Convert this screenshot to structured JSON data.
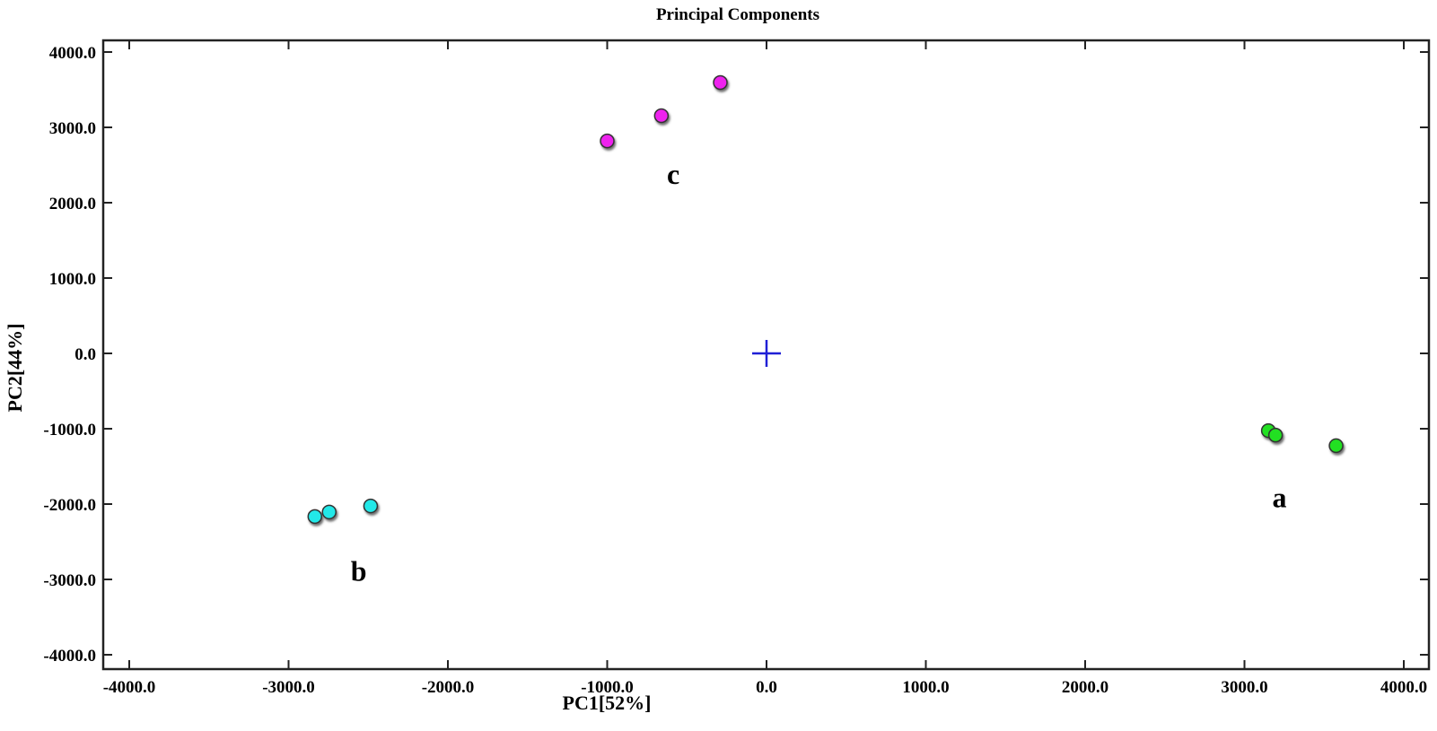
{
  "chart_data": {
    "type": "scatter",
    "title": "Principal Components",
    "xlabel": "PC1[52%]",
    "ylabel": "PC2[44%]",
    "xlim": [
      -4000,
      4000
    ],
    "ylim": [
      -4000,
      4000
    ],
    "xticks": [
      -4000,
      -3000,
      -2000,
      -1000,
      0,
      1000,
      2000,
      3000,
      4000
    ],
    "yticks": [
      -4000,
      -3000,
      -2000,
      -1000,
      0,
      1000,
      2000,
      3000,
      4000
    ],
    "xtick_labels": [
      "-4000.0",
      "-3000.0",
      "-2000.0",
      "-1000.0",
      "0.0",
      "1000.0",
      "2000.0",
      "3000.0",
      "4000.0"
    ],
    "ytick_labels": [
      "-4000.0",
      "-3000.0",
      "-2000.0",
      "-1000.0",
      "0.0",
      "1000.0",
      "2000.0",
      "3000.0",
      "4000.0"
    ],
    "grid": false,
    "legend": null,
    "origin_marker": {
      "x": 0,
      "y": 0,
      "symbol": "+",
      "color": "#1f1fd6"
    },
    "series": [
      {
        "name": "a",
        "color": "#22e022",
        "points": [
          {
            "x": 3150,
            "y": -1025
          },
          {
            "x": 3195,
            "y": -1085
          },
          {
            "x": 3575,
            "y": -1225
          }
        ],
        "label_pos": {
          "x": 3220,
          "y": -1920
        }
      },
      {
        "name": "b",
        "color": "#22e8e8",
        "points": [
          {
            "x": -2835,
            "y": -2165
          },
          {
            "x": -2745,
            "y": -2105
          },
          {
            "x": -2485,
            "y": -2025
          }
        ],
        "label_pos": {
          "x": -2560,
          "y": -2900
        }
      },
      {
        "name": "c",
        "color": "#ee22ee",
        "points": [
          {
            "x": -1000,
            "y": 2820
          },
          {
            "x": -660,
            "y": 3155
          },
          {
            "x": -290,
            "y": 3595
          }
        ],
        "label_pos": {
          "x": -585,
          "y": 2370
        }
      }
    ]
  }
}
